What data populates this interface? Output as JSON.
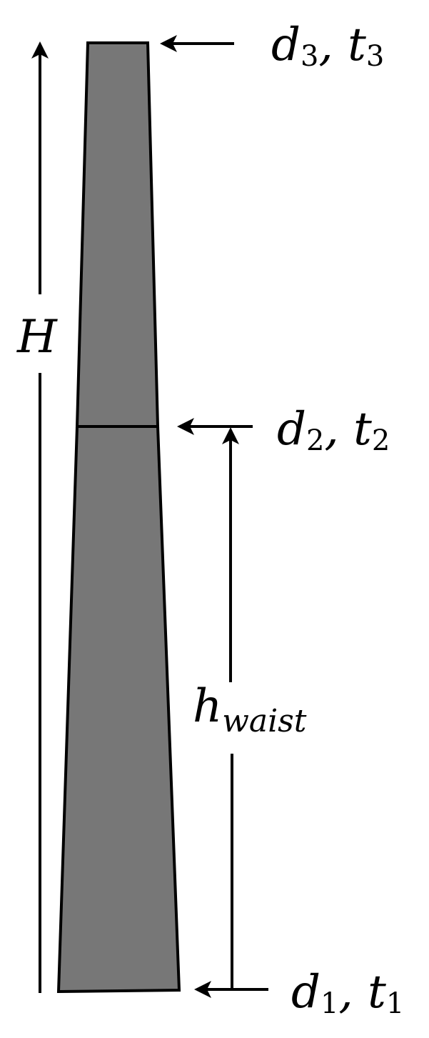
{
  "diagram": {
    "total_height_label": {
      "main": "H"
    },
    "waist_height_label": {
      "main": "h",
      "sub": "waist"
    },
    "top_section": {
      "d_main": "d",
      "d_sub": "3",
      "separator": ", ",
      "t_main": "t",
      "t_sub": "3"
    },
    "waist_section": {
      "d_main": "d",
      "d_sub": "2",
      "separator": ", ",
      "t_main": "t",
      "t_sub": "2"
    },
    "bottom_section": {
      "d_main": "d",
      "d_sub": "1",
      "separator": ", ",
      "t_main": "t",
      "t_sub": "1"
    },
    "colors": {
      "tower_fill": "#777777",
      "stroke": "#000000",
      "background": "#ffffff"
    }
  }
}
